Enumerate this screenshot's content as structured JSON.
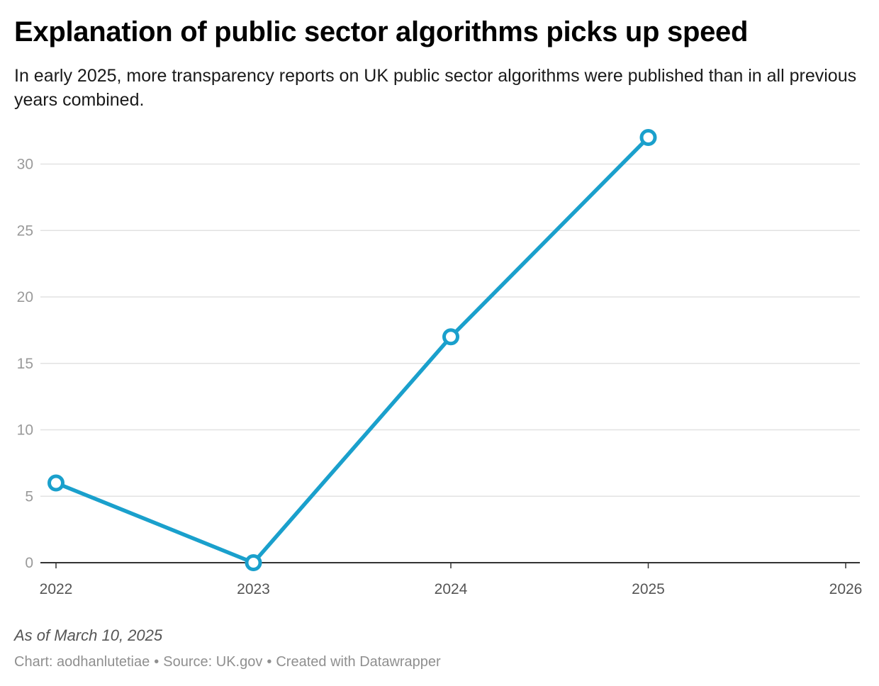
{
  "header": {
    "title": "Explanation of public sector algorithms picks up speed",
    "subtitle": "In early 2025, more transparency reports on UK public sector algorithms were published than in all previous years combined."
  },
  "footer": {
    "note": "As of March 10, 2025",
    "chart_by": "Chart: aodhanlutetiae",
    "source": "Source: UK.gov",
    "created_with": "Created with Datawrapper",
    "separator": "•"
  },
  "colors": {
    "series": "#1aa0cc",
    "gridline": "#e2e2e2",
    "axis": "#333333"
  },
  "chart_data": {
    "type": "line",
    "title": "Explanation of public sector algorithms picks up speed",
    "subtitle": "In early 2025, more transparency reports on UK public sector algorithms were published than in all previous years combined.",
    "x": [
      2022,
      2023,
      2024,
      2025
    ],
    "series": [
      {
        "values": [
          6,
          0,
          17,
          32
        ]
      }
    ],
    "xlim": [
      2022,
      2026
    ],
    "ylim": [
      0,
      30
    ],
    "x_ticks": [
      "2022",
      "2023",
      "2024",
      "2025",
      "2026"
    ],
    "y_ticks": [
      "0",
      "5",
      "10",
      "15",
      "20",
      "25",
      "30"
    ],
    "xlabel": "",
    "ylabel": "",
    "grid": true,
    "markers": "hollow-circle"
  }
}
